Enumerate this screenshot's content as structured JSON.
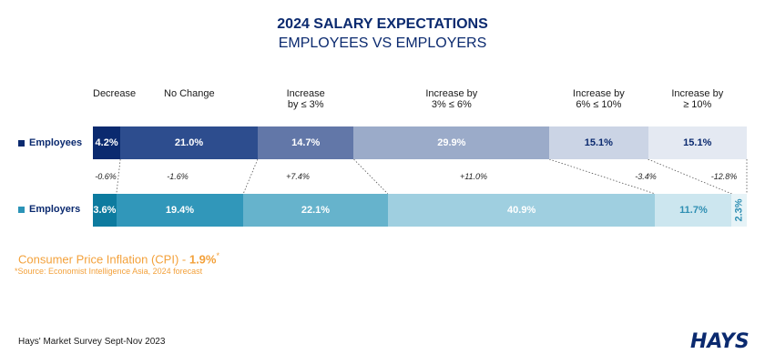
{
  "title": "2024 SALARY EXPECTATIONS",
  "subtitle": "EMPLOYEES VS EMPLOYERS",
  "chart_data": {
    "type": "bar",
    "orientation": "horizontal-stacked-100",
    "categories": [
      "Decrease",
      "No Change",
      "Increase\nby ≤ 3%",
      "Increase by\n3% ≤ 6%",
      "Increase by\n6% ≤ 10%",
      "Increase by\n≥ 10%"
    ],
    "series": [
      {
        "name": "Employees",
        "values": [
          4.2,
          21.0,
          14.7,
          29.9,
          15.1,
          15.1
        ],
        "labels": [
          "4.2%",
          "21.0%",
          "14.7%",
          "29.9%",
          "15.1%",
          "15.1%"
        ],
        "colors": [
          "#0b2a6f",
          "#2d4d8e",
          "#6277a8",
          "#9babc9",
          "#cbd4e5",
          "#e4e9f2"
        ],
        "text_colors": [
          "#ffffff",
          "#ffffff",
          "#ffffff",
          "#ffffff",
          "#0b2a6f",
          "#0b2a6f"
        ]
      },
      {
        "name": "Employers",
        "values": [
          3.6,
          19.4,
          22.1,
          40.9,
          11.7,
          2.3
        ],
        "labels": [
          "3.6%",
          "19.4%",
          "22.1%",
          "40.9%",
          "11.7%",
          "2.3%"
        ],
        "colors": [
          "#0d7b9f",
          "#3197ba",
          "#66b3cc",
          "#9fcfe0",
          "#cce6ef",
          "#e6f3f7"
        ],
        "text_colors": [
          "#ffffff",
          "#ffffff",
          "#ffffff",
          "#ffffff",
          "#2f8fb3",
          "#2f8fb3"
        ]
      }
    ],
    "differences": [
      "-0.6%",
      "-1.6%",
      "+7.4%",
      "+11.0%",
      "-3.4%",
      "-12.8%"
    ],
    "series_markers": [
      "#0b2a6f",
      "#2b93b7"
    ]
  },
  "cpi": {
    "label": "Consumer Price Inflation (CPI) - ",
    "value": "1.9%",
    "mark": "*",
    "source": "*Source: Economist Intelligence Asia, 2024 forecast"
  },
  "footer": {
    "survey": "Hays' Market Survey Sept-Nov 2023",
    "logo": "HAYS"
  }
}
